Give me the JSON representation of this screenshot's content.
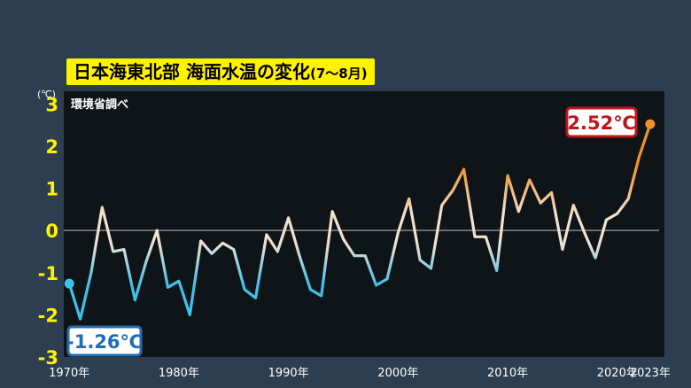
{
  "title": {
    "main": "日本海東北部 海面水温の変化",
    "sub": "(7〜8月)"
  },
  "source": "環境省調べ",
  "unit": "(℃)",
  "callouts": {
    "first": "-1.26℃",
    "last": "2.52℃"
  },
  "colors": {
    "background": "#2c3e50",
    "plot": "#0f1419",
    "title_bg": "#fff200",
    "y_ticks": "#fff200",
    "cold": "#3fc1e8",
    "neutral": "#f1e2cf",
    "warm": "#f0932a",
    "callout_first_border": "#1d6fb5",
    "callout_last_border": "#c0141b"
  },
  "chart_data": {
    "type": "line",
    "title": "日本海東北部 海面水温の変化(7〜8月)",
    "ylabel": "(℃)",
    "ylim": [
      -3,
      3.3
    ],
    "xlim": [
      1969.5,
      2024.3
    ],
    "yticks": [
      "3",
      "2",
      "1",
      "0",
      "-1",
      "-2",
      "-3"
    ],
    "xtick_labels": [
      {
        "x": 1970,
        "label": "1970年"
      },
      {
        "x": 1980,
        "label": "1980年"
      },
      {
        "x": 1990,
        "label": "1990年"
      },
      {
        "x": 2000,
        "label": "2000年"
      },
      {
        "x": 2010,
        "label": "2010年"
      },
      {
        "x": 2020,
        "label": "2020年"
      },
      {
        "x": 2023,
        "label": "2023年"
      }
    ],
    "grid": false,
    "baseline": 0,
    "series": [
      {
        "x": [
          1970,
          1971,
          1972,
          1973,
          1974,
          1975,
          1976,
          1977,
          1978,
          1979,
          1980,
          1981,
          1982,
          1983,
          1984,
          1985,
          1986,
          1987,
          1988,
          1989,
          1990,
          1991,
          1992,
          1993,
          1994,
          1995,
          1996,
          1997,
          1998,
          1999,
          2000,
          2001,
          2002,
          2003,
          2004,
          2005,
          2006,
          2007,
          2008,
          2009,
          2010,
          2011,
          2012,
          2013,
          2014,
          2015,
          2016,
          2017,
          2018,
          2019,
          2020,
          2021,
          2022,
          2023
        ],
        "values": [
          -1.26,
          -2.1,
          -1.0,
          0.55,
          -0.5,
          -0.45,
          -1.65,
          -0.75,
          0.0,
          -1.35,
          -1.2,
          -2.0,
          -0.25,
          -0.55,
          -0.3,
          -0.45,
          -1.4,
          -1.6,
          -0.1,
          -0.5,
          0.3,
          -0.6,
          -1.4,
          -1.55,
          0.45,
          -0.2,
          -0.6,
          -0.6,
          -1.3,
          -1.15,
          -0.05,
          0.75,
          -0.7,
          -0.9,
          0.6,
          0.95,
          1.45,
          -0.15,
          -0.15,
          -0.95,
          1.3,
          0.45,
          1.2,
          0.65,
          0.9,
          -0.45,
          0.6,
          -0.05,
          -0.65,
          0.25,
          0.4,
          0.75,
          1.75,
          2.52
        ]
      }
    ]
  }
}
